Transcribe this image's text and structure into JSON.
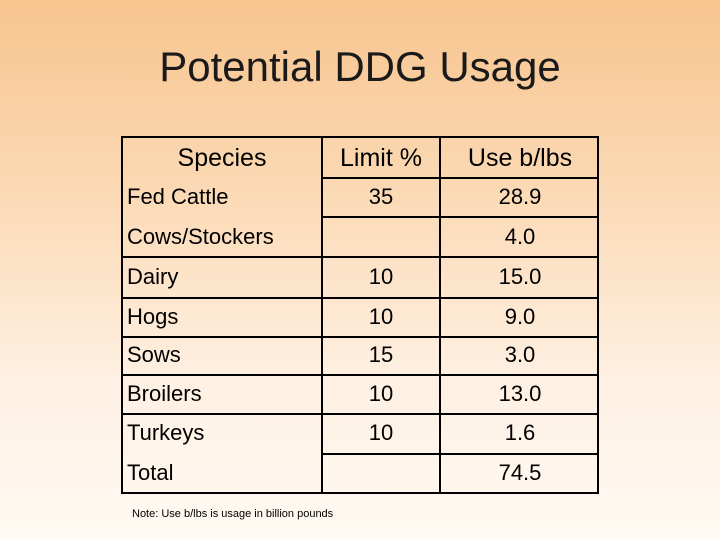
{
  "title": "Potential DDG Usage",
  "table": {
    "headers": [
      "Species",
      "Limit %",
      "Use b/lbs"
    ],
    "rows": [
      {
        "species": "Fed Cattle",
        "limit": "35",
        "use": "28.9"
      },
      {
        "species": "Cows/Stockers",
        "limit": "",
        "use": "4.0"
      },
      {
        "species": "Dairy",
        "limit": "10",
        "use": "15.0"
      },
      {
        "species": "Hogs",
        "limit": "10",
        "use": "9.0"
      },
      {
        "species": "Sows",
        "limit": "15",
        "use": "3.0"
      },
      {
        "species": "Broilers",
        "limit": "10",
        "use": "13.0"
      },
      {
        "species": "Turkeys",
        "limit": "10",
        "use": "1.6"
      },
      {
        "species": "Total",
        "limit": "",
        "use": "74.5"
      }
    ]
  },
  "note": "Note: Use b/lbs is usage in billion pounds"
}
